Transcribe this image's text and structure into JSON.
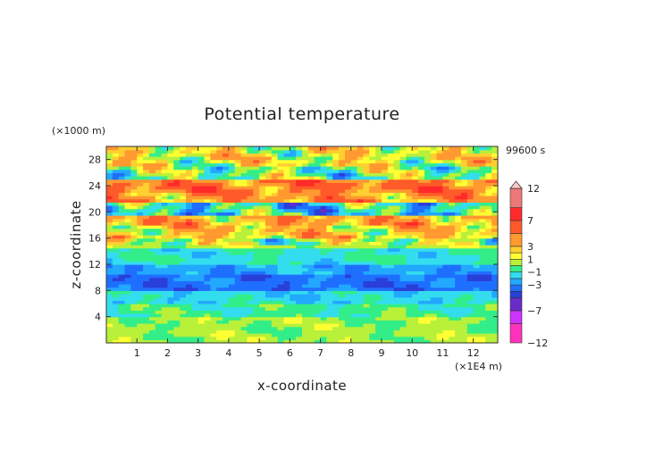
{
  "chart_data": {
    "type": "heatmap",
    "title": "Potential temperature",
    "xlabel": "x-coordinate",
    "ylabel": "z-coordinate",
    "x_unit": "(×1E4 m)",
    "y_unit": "(×1000 m)",
    "time_label": "99600 s",
    "xlim": [
      0,
      12.8
    ],
    "ylim": [
      0,
      30
    ],
    "x_ticks": [
      1,
      2,
      3,
      4,
      5,
      6,
      7,
      8,
      9,
      10,
      11,
      12
    ],
    "y_ticks": [
      4,
      8,
      12,
      16,
      20,
      24,
      28
    ],
    "colorbar": {
      "levels": [
        -12,
        -9,
        -7,
        -5,
        -4,
        -3,
        -2,
        -1,
        0,
        1,
        2,
        3,
        5,
        7,
        9,
        12
      ],
      "labels": [
        12,
        7,
        3,
        1,
        -1,
        -3,
        -7,
        -12
      ],
      "colors": [
        "#ff33bb",
        "#cc33ff",
        "#6a2cc8",
        "#2a3fd8",
        "#1f6fff",
        "#22a8ff",
        "#33ddee",
        "#33ee88",
        "#b8f03a",
        "#ffff33",
        "#ffd030",
        "#ff9930",
        "#ff5a2a",
        "#ff2a2a",
        "#ee7777",
        "#ffc8c8"
      ],
      "extend": "max"
    },
    "bands": [
      {
        "z_range": [
          0,
          4
        ],
        "value": 0.3
      },
      {
        "z_range": [
          4,
          6
        ],
        "value": -0.6
      },
      {
        "z_range": [
          6,
          8
        ],
        "value": -1.6
      },
      {
        "z_range": [
          8,
          10.5
        ],
        "value": -3.5
      },
      {
        "z_range": [
          10.5,
          12
        ],
        "value": -2.5
      },
      {
        "z_range": [
          12,
          14.5
        ],
        "value": -1.2
      },
      {
        "z_range": [
          14.5,
          16
        ],
        "value": 0.5
      },
      {
        "z_range": [
          16,
          18
        ],
        "value": 2.5
      },
      {
        "z_range": [
          18,
          19.5
        ],
        "value": 3.5
      },
      {
        "z_range": [
          19.5,
          21.5
        ],
        "value": -1.5
      },
      {
        "z_range": [
          21.5,
          23
        ],
        "value": 4.0
      },
      {
        "z_range": [
          23,
          25
        ],
        "value": 5.0
      },
      {
        "z_range": [
          25,
          27
        ],
        "value": 0.0
      },
      {
        "z_range": [
          27,
          30
        ],
        "value": 1.5
      }
    ]
  }
}
